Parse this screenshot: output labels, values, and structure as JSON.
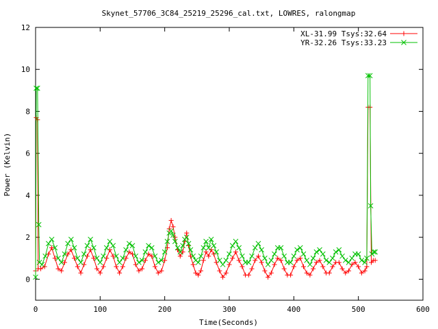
{
  "chart_data": {
    "type": "scatter",
    "title": "Skynet_57706_3C84_25219_25296_cal.txt, LOWRES, ralongmap",
    "xlabel": "Time(Seconds)",
    "ylabel": "Power (Kelvin)",
    "xlim": [
      0,
      600
    ],
    "ylim": [
      -1,
      12
    ],
    "x_ticks": [
      0,
      100,
      200,
      300,
      400,
      500,
      600
    ],
    "y_ticks": [
      0,
      2,
      4,
      6,
      8,
      10,
      12
    ],
    "grid": false,
    "legend_position": "top-right",
    "series": [
      {
        "name": "XL-31.99 Tsys:32.64",
        "color": "#ff0000",
        "marker": "plus",
        "points": [
          [
            0,
            0.4
          ],
          [
            1,
            7.7
          ],
          [
            3,
            7.6
          ],
          [
            4,
            0.5
          ],
          [
            8,
            0.5
          ],
          [
            14,
            0.6
          ],
          [
            20,
            1.2
          ],
          [
            25,
            1.5
          ],
          [
            30,
            1.0
          ],
          [
            35,
            0.5
          ],
          [
            40,
            0.4
          ],
          [
            45,
            0.8
          ],
          [
            50,
            1.2
          ],
          [
            55,
            1.4
          ],
          [
            60,
            1.0
          ],
          [
            65,
            0.6
          ],
          [
            70,
            0.3
          ],
          [
            75,
            0.7
          ],
          [
            80,
            1.1
          ],
          [
            85,
            1.4
          ],
          [
            90,
            1.0
          ],
          [
            95,
            0.5
          ],
          [
            100,
            0.3
          ],
          [
            105,
            0.6
          ],
          [
            110,
            1.0
          ],
          [
            115,
            1.4
          ],
          [
            120,
            1.1
          ],
          [
            125,
            0.6
          ],
          [
            130,
            0.3
          ],
          [
            135,
            0.6
          ],
          [
            140,
            1.0
          ],
          [
            145,
            1.3
          ],
          [
            150,
            1.2
          ],
          [
            155,
            0.7
          ],
          [
            160,
            0.4
          ],
          [
            165,
            0.5
          ],
          [
            170,
            0.9
          ],
          [
            175,
            1.2
          ],
          [
            180,
            1.1
          ],
          [
            185,
            0.6
          ],
          [
            190,
            0.3
          ],
          [
            195,
            0.4
          ],
          [
            200,
            0.9
          ],
          [
            204,
            1.5
          ],
          [
            207,
            2.4
          ],
          [
            210,
            2.8
          ],
          [
            213,
            2.5
          ],
          [
            216,
            2.0
          ],
          [
            220,
            1.4
          ],
          [
            224,
            1.1
          ],
          [
            228,
            1.3
          ],
          [
            231,
            1.8
          ],
          [
            234,
            2.2
          ],
          [
            237,
            1.6
          ],
          [
            240,
            1.1
          ],
          [
            244,
            0.7
          ],
          [
            248,
            0.3
          ],
          [
            252,
            0.2
          ],
          [
            256,
            0.4
          ],
          [
            260,
            0.9
          ],
          [
            264,
            1.3
          ],
          [
            268,
            1.1
          ],
          [
            272,
            1.4
          ],
          [
            276,
            1.2
          ],
          [
            280,
            0.8
          ],
          [
            285,
            0.4
          ],
          [
            290,
            0.1
          ],
          [
            295,
            0.3
          ],
          [
            300,
            0.7
          ],
          [
            305,
            1.0
          ],
          [
            310,
            1.3
          ],
          [
            315,
            0.9
          ],
          [
            320,
            0.6
          ],
          [
            325,
            0.2
          ],
          [
            330,
            0.2
          ],
          [
            335,
            0.5
          ],
          [
            340,
            0.9
          ],
          [
            345,
            1.1
          ],
          [
            350,
            0.8
          ],
          [
            355,
            0.4
          ],
          [
            360,
            0.1
          ],
          [
            365,
            0.3
          ],
          [
            370,
            0.7
          ],
          [
            375,
            1.0
          ],
          [
            380,
            0.9
          ],
          [
            385,
            0.5
          ],
          [
            390,
            0.2
          ],
          [
            395,
            0.2
          ],
          [
            400,
            0.6
          ],
          [
            405,
            0.9
          ],
          [
            410,
            1.0
          ],
          [
            415,
            0.6
          ],
          [
            420,
            0.3
          ],
          [
            425,
            0.2
          ],
          [
            430,
            0.5
          ],
          [
            435,
            0.8
          ],
          [
            440,
            0.9
          ],
          [
            445,
            0.6
          ],
          [
            450,
            0.3
          ],
          [
            455,
            0.3
          ],
          [
            460,
            0.6
          ],
          [
            465,
            0.8
          ],
          [
            470,
            0.8
          ],
          [
            475,
            0.5
          ],
          [
            480,
            0.3
          ],
          [
            485,
            0.4
          ],
          [
            490,
            0.7
          ],
          [
            495,
            0.8
          ],
          [
            500,
            0.6
          ],
          [
            505,
            0.3
          ],
          [
            510,
            0.4
          ],
          [
            513,
            0.6
          ],
          [
            515,
            8.2
          ],
          [
            518,
            8.2
          ],
          [
            520,
            0.8
          ],
          [
            523,
            0.9
          ],
          [
            526,
            0.9
          ]
        ]
      },
      {
        "name": "YR-32.26 Tsys:33.23",
        "color": "#00c000",
        "marker": "cross",
        "points": [
          [
            0,
            0.1
          ],
          [
            1,
            9.1
          ],
          [
            3,
            9.1
          ],
          [
            5,
            2.6
          ],
          [
            6,
            0.8
          ],
          [
            10,
            0.7
          ],
          [
            15,
            1.1
          ],
          [
            20,
            1.7
          ],
          [
            25,
            1.9
          ],
          [
            30,
            1.5
          ],
          [
            35,
            1.0
          ],
          [
            40,
            0.8
          ],
          [
            45,
            1.2
          ],
          [
            50,
            1.7
          ],
          [
            55,
            1.9
          ],
          [
            60,
            1.5
          ],
          [
            65,
            1.0
          ],
          [
            70,
            0.8
          ],
          [
            75,
            1.2
          ],
          [
            80,
            1.6
          ],
          [
            85,
            1.9
          ],
          [
            90,
            1.5
          ],
          [
            95,
            1.0
          ],
          [
            100,
            0.8
          ],
          [
            105,
            1.1
          ],
          [
            110,
            1.5
          ],
          [
            115,
            1.8
          ],
          [
            120,
            1.6
          ],
          [
            125,
            1.1
          ],
          [
            130,
            0.8
          ],
          [
            135,
            1.0
          ],
          [
            140,
            1.4
          ],
          [
            145,
            1.7
          ],
          [
            150,
            1.6
          ],
          [
            155,
            1.1
          ],
          [
            160,
            0.8
          ],
          [
            165,
            0.9
          ],
          [
            170,
            1.3
          ],
          [
            175,
            1.6
          ],
          [
            180,
            1.5
          ],
          [
            185,
            1.1
          ],
          [
            190,
            0.8
          ],
          [
            195,
            0.9
          ],
          [
            200,
            1.3
          ],
          [
            204,
            1.8
          ],
          [
            207,
            2.2
          ],
          [
            210,
            2.3
          ],
          [
            213,
            2.1
          ],
          [
            216,
            1.8
          ],
          [
            220,
            1.5
          ],
          [
            224,
            1.3
          ],
          [
            228,
            1.6
          ],
          [
            231,
            1.9
          ],
          [
            234,
            2.0
          ],
          [
            237,
            1.7
          ],
          [
            240,
            1.4
          ],
          [
            244,
            1.1
          ],
          [
            248,
            0.9
          ],
          [
            252,
            0.8
          ],
          [
            256,
            1.1
          ],
          [
            260,
            1.5
          ],
          [
            264,
            1.8
          ],
          [
            268,
            1.5
          ],
          [
            272,
            1.9
          ],
          [
            276,
            1.6
          ],
          [
            280,
            1.3
          ],
          [
            285,
            0.9
          ],
          [
            290,
            0.7
          ],
          [
            295,
            0.9
          ],
          [
            300,
            1.2
          ],
          [
            305,
            1.6
          ],
          [
            310,
            1.8
          ],
          [
            315,
            1.5
          ],
          [
            320,
            1.1
          ],
          [
            325,
            0.8
          ],
          [
            330,
            0.8
          ],
          [
            335,
            1.1
          ],
          [
            340,
            1.5
          ],
          [
            345,
            1.7
          ],
          [
            350,
            1.4
          ],
          [
            355,
            1.0
          ],
          [
            360,
            0.7
          ],
          [
            365,
            0.9
          ],
          [
            370,
            1.2
          ],
          [
            375,
            1.5
          ],
          [
            380,
            1.5
          ],
          [
            385,
            1.1
          ],
          [
            390,
            0.8
          ],
          [
            395,
            0.8
          ],
          [
            400,
            1.1
          ],
          [
            405,
            1.4
          ],
          [
            410,
            1.5
          ],
          [
            415,
            1.2
          ],
          [
            420,
            0.9
          ],
          [
            425,
            0.7
          ],
          [
            430,
            1.0
          ],
          [
            435,
            1.3
          ],
          [
            440,
            1.4
          ],
          [
            445,
            1.2
          ],
          [
            450,
            0.9
          ],
          [
            455,
            0.8
          ],
          [
            460,
            1.0
          ],
          [
            465,
            1.3
          ],
          [
            470,
            1.4
          ],
          [
            475,
            1.1
          ],
          [
            480,
            0.9
          ],
          [
            485,
            0.8
          ],
          [
            490,
            1.0
          ],
          [
            495,
            1.2
          ],
          [
            500,
            1.2
          ],
          [
            505,
            0.9
          ],
          [
            510,
            0.8
          ],
          [
            513,
            1.0
          ],
          [
            515,
            9.7
          ],
          [
            518,
            9.7
          ],
          [
            519,
            3.5
          ],
          [
            521,
            1.2
          ],
          [
            524,
            1.3
          ],
          [
            526,
            1.3
          ]
        ]
      }
    ]
  }
}
